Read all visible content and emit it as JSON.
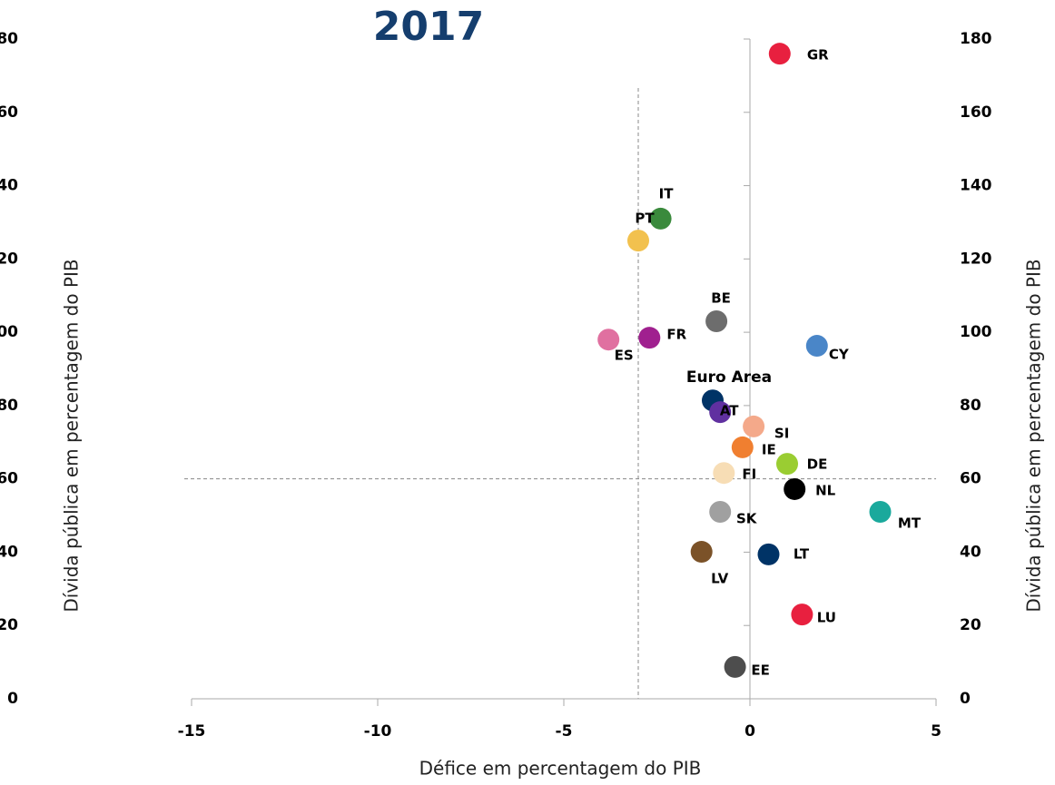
{
  "chart_data": {
    "type": "scatter",
    "title": "2017",
    "x_label": "Défice em percentagem do PIB",
    "y_label": "Dívida pública em percentagem do PIB",
    "y2_label": "Dívida pública em percentagem do PIB",
    "xlim": [
      -15,
      5
    ],
    "xticks": [
      -15,
      -10,
      -5,
      0,
      5
    ],
    "ylim": [
      0,
      180
    ],
    "yticks": [
      0,
      20,
      40,
      60,
      80,
      100,
      120,
      140,
      160,
      180
    ],
    "reference_lines": {
      "x": -3,
      "y": 60
    },
    "points": [
      {
        "label": "GR",
        "x": 0.8,
        "y": 176,
        "color": "#e8203f"
      },
      {
        "label": "IT",
        "x": -2.4,
        "y": 131,
        "color": "#3a8a3c"
      },
      {
        "label": "PT",
        "x": -3.0,
        "y": 125,
        "color": "#f2c14e"
      },
      {
        "label": "BE",
        "x": -0.9,
        "y": 103,
        "color": "#6d6d6d"
      },
      {
        "label": "ES",
        "x": -3.8,
        "y": 98,
        "color": "#e070a0"
      },
      {
        "label": "FR",
        "x": -2.7,
        "y": 98.5,
        "color": "#a0208f"
      },
      {
        "label": "CY",
        "x": 1.8,
        "y": 96.3,
        "color": "#4a86c8"
      },
      {
        "label": "Euro Area",
        "x": -1.0,
        "y": 81.4,
        "color": "#003366"
      },
      {
        "label": "AT",
        "x": -0.8,
        "y": 78.2,
        "color": "#6030a0"
      },
      {
        "label": "SI",
        "x": 0.1,
        "y": 74.3,
        "color": "#f4a98a"
      },
      {
        "label": "IE",
        "x": -0.2,
        "y": 68.6,
        "color": "#f07f30"
      },
      {
        "label": "DE",
        "x": 1.0,
        "y": 64.1,
        "color": "#9acd32"
      },
      {
        "label": "FI",
        "x": -0.7,
        "y": 61.6,
        "color": "#f7ddb5"
      },
      {
        "label": "NL",
        "x": 1.2,
        "y": 57.2,
        "color": "#000000"
      },
      {
        "label": "MT",
        "x": 3.5,
        "y": 51,
        "color": "#1aa99c"
      },
      {
        "label": "SK",
        "x": -0.8,
        "y": 51,
        "color": "#a0a0a0"
      },
      {
        "label": "LV",
        "x": -1.3,
        "y": 40.1,
        "color": "#7b5228"
      },
      {
        "label": "LT",
        "x": 0.5,
        "y": 39.4,
        "color": "#003366"
      },
      {
        "label": "LU",
        "x": 1.4,
        "y": 23,
        "color": "#e8203f"
      },
      {
        "label": "EE",
        "x": -0.4,
        "y": 8.7,
        "color": "#4d4d4d"
      }
    ]
  }
}
